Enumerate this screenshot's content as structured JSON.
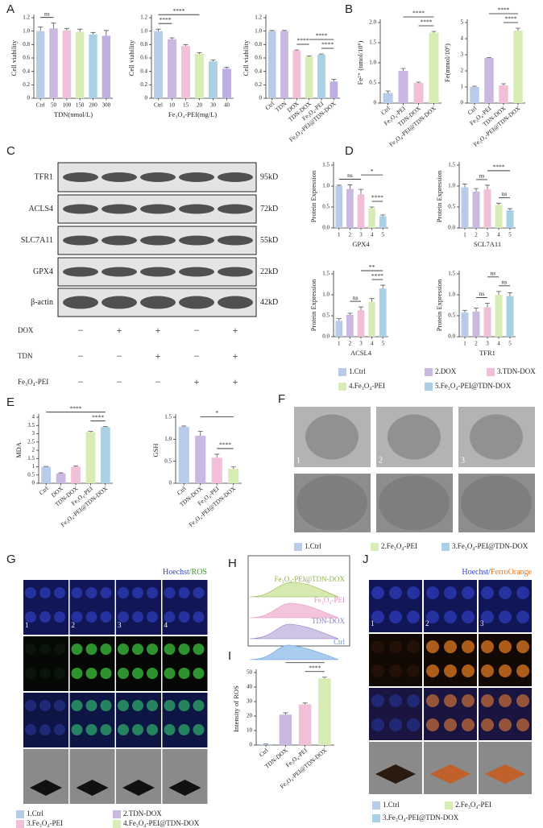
{
  "panel_labels": [
    "A",
    "B",
    "C",
    "D",
    "E",
    "F",
    "G",
    "H",
    "I",
    "J"
  ],
  "chart_data": [
    {
      "type": "bar",
      "ylabel": "Cell viability",
      "xlabel": "TDN(nmol/L)",
      "categories": [
        "Ctrl",
        "50",
        "100",
        "150",
        "200",
        "300"
      ],
      "values": [
        1.0,
        1.04,
        1.01,
        0.99,
        0.95,
        0.93
      ],
      "errors": [
        0.06,
        0.08,
        0.03,
        0.04,
        0.03,
        0.08
      ],
      "colors": [
        "#b8cbe8",
        "#c9b8e0",
        "#f2bfd8",
        "#d8ecb6",
        "#a9d0e4",
        "#bfaee0"
      ],
      "ylim": [
        0,
        1.2
      ],
      "yticks": [
        0,
        0.2,
        0.4,
        0.6,
        0.8,
        {
          "value": 1,
          "label": "1.0"
        },
        1.2
      ],
      "annotations": [
        "ns"
      ]
    },
    {
      "type": "bar",
      "ylabel": "Cell viability",
      "xlabel": "Fe₃O₄-PEI(mg/L)",
      "categories": [
        "Ctrl",
        "10",
        "15",
        "20",
        "30",
        "40"
      ],
      "values": [
        1.0,
        0.88,
        0.78,
        0.66,
        0.55,
        0.44
      ],
      "errors": [
        0.03,
        0.02,
        0.02,
        0.02,
        0.02,
        0.02
      ],
      "colors": [
        "#b8cbe8",
        "#c9b8e0",
        "#f2bfd8",
        "#d8ecb6",
        "#a9d0e4",
        "#bfaee0"
      ],
      "ylim": [
        0,
        1.2
      ],
      "yticks": [
        0,
        0.2,
        0.4,
        0.6,
        0.8,
        {
          "value": 1,
          "label": "1.0"
        },
        1.2
      ],
      "annotations": [
        "****",
        "****"
      ]
    },
    {
      "type": "bar",
      "ylabel": "Cell viability",
      "categories": [
        "Ctrl",
        "TDN",
        "DOX",
        "TDN-DOX",
        "Fe₃O₄-PEI",
        "Fe₃O₄-PEI@TDN-DOX"
      ],
      "values": [
        1.0,
        1.0,
        0.71,
        0.62,
        0.65,
        0.25
      ],
      "errors": [
        0.01,
        0.01,
        0.01,
        0.01,
        0.01,
        0.03
      ],
      "colors": [
        "#b8cbe8",
        "#c9b8e0",
        "#f2bfd8",
        "#d8ecb6",
        "#a9d0e4",
        "#bfaee0"
      ],
      "ylim": [
        0,
        1.2
      ],
      "yticks": [
        0,
        0.2,
        0.4,
        0.6,
        0.8,
        {
          "value": 1,
          "label": "1.0"
        },
        1.2
      ],
      "annotations": [
        "****",
        "****",
        "****"
      ]
    },
    {
      "type": "bar",
      "ylabel": "Fe²⁺ (nmol/10⁶)",
      "categories": [
        "Ctrl",
        "Fe₃O₄-PEI",
        "TDN-DOX",
        "Fe₃O₄-PEI@TDN-DOX"
      ],
      "values": [
        0.25,
        0.8,
        0.5,
        1.75
      ],
      "errors": [
        0.05,
        0.06,
        0.02,
        0.03
      ],
      "colors": [
        "#b8cbe8",
        "#c9b8e0",
        "#f2bfd8",
        "#d8ecb6"
      ],
      "ylim": [
        0,
        2
      ],
      "yticks": [
        0,
        0.5,
        {
          "value": 1,
          "label": "1.0"
        },
        1.5,
        {
          "value": 2,
          "label": "2.0"
        }
      ],
      "annotations": [
        "****",
        "****"
      ]
    },
    {
      "type": "bar",
      "ylabel": "Fe(mmol/10⁶)",
      "categories": [
        "Ctrl",
        "Fe₃O₄-PEI",
        "TDN-DOX",
        "Fe₃O₄-PEI@TDN-DOX"
      ],
      "values": [
        1.0,
        2.8,
        1.1,
        4.5
      ],
      "errors": [
        0.05,
        0.03,
        0.1,
        0.15
      ],
      "colors": [
        "#b8cbe8",
        "#c9b8e0",
        "#f2bfd8",
        "#d8ecb6"
      ],
      "ylim": [
        0,
        5
      ],
      "yticks": [
        0,
        1,
        2,
        3,
        4,
        5
      ],
      "annotations": [
        "****",
        "****"
      ]
    },
    {
      "type": "bar",
      "ylabel": "Protein Expression",
      "xlabel": "GPX4",
      "categories": [
        "1",
        "2",
        "3",
        "4",
        "5"
      ],
      "values": [
        1.0,
        0.93,
        0.8,
        0.47,
        0.28
      ],
      "errors": [
        0.02,
        0.1,
        0.12,
        0.03,
        0.03
      ],
      "colors": [
        "#b8cbe8",
        "#c9b8e0",
        "#f2bfd8",
        "#d8ecb6",
        "#a9d0e4"
      ],
      "ylim": [
        0,
        1.5
      ],
      "yticks": [
        {
          "value": 0,
          "label": "0.0"
        },
        0.5,
        {
          "value": 1,
          "label": "1.0"
        },
        1.5
      ],
      "annotations": [
        "ns",
        "****",
        "*"
      ]
    },
    {
      "type": "bar",
      "ylabel": "Protein Expression",
      "xlabel": "SCL7A11",
      "categories": [
        "1",
        "2",
        "3",
        "4",
        "5"
      ],
      "values": [
        0.97,
        0.87,
        0.92,
        0.55,
        0.42
      ],
      "errors": [
        0.08,
        0.07,
        0.1,
        0.04,
        0.04
      ],
      "colors": [
        "#b8cbe8",
        "#c9b8e0",
        "#f2bfd8",
        "#d8ecb6",
        "#a9d0e4"
      ],
      "ylim": [
        0,
        1.5
      ],
      "yticks": [
        {
          "value": 0,
          "label": "0.0"
        },
        0.5,
        {
          "value": 1,
          "label": "1.0"
        },
        1.5
      ],
      "annotations": [
        "ns",
        "ns",
        "****"
      ]
    },
    {
      "type": "bar",
      "ylabel": "Protein Expression",
      "xlabel": "ACSL4",
      "categories": [
        "1",
        "2",
        "3",
        "4",
        "5"
      ],
      "values": [
        0.38,
        0.52,
        0.63,
        0.83,
        1.15
      ],
      "errors": [
        0.05,
        0.04,
        0.08,
        0.08,
        0.08
      ],
      "colors": [
        "#b8cbe8",
        "#c9b8e0",
        "#f2bfd8",
        "#d8ecb6",
        "#a9d0e4"
      ],
      "ylim": [
        0,
        1.5
      ],
      "yticks": [
        {
          "value": 0,
          "label": "0.0"
        },
        0.5,
        {
          "value": 1,
          "label": "1.0"
        },
        1.5
      ],
      "annotations": [
        "ns",
        "****",
        "**"
      ]
    },
    {
      "type": "bar",
      "ylabel": "Protein Expression",
      "xlabel": "TFR1",
      "categories": [
        "1",
        "2",
        "3",
        "4",
        "5"
      ],
      "values": [
        0.58,
        0.6,
        0.7,
        1.0,
        0.97
      ],
      "errors": [
        0.05,
        0.08,
        0.1,
        0.08,
        0.08
      ],
      "colors": [
        "#b8cbe8",
        "#c9b8e0",
        "#f2bfd8",
        "#d8ecb6",
        "#a9d0e4"
      ],
      "ylim": [
        0,
        1.5
      ],
      "yticks": [
        {
          "value": 0,
          "label": "0.0"
        },
        0.5,
        {
          "value": 1,
          "label": "1.0"
        },
        1.5
      ],
      "annotations": [
        "ns",
        "ns",
        "ns"
      ]
    },
    {
      "type": "bar",
      "ylabel": "MDA",
      "categories": [
        "Ctrl",
        "DOX",
        "TDN-DOX",
        "Fe₃O₄-PEI",
        "Fe₃O₄-PEI@TDN-DOX"
      ],
      "values": [
        1.0,
        0.6,
        1.0,
        3.1,
        3.4
      ],
      "errors": [
        0.02,
        0.03,
        0.04,
        0.04,
        0.03
      ],
      "colors": [
        "#b8cbe8",
        "#c9b8e0",
        "#f2bfd8",
        "#d8ecb6",
        "#a9d0e4"
      ],
      "ylim": [
        0,
        4
      ],
      "yticks": [
        0,
        0.5,
        1,
        1.5,
        2,
        2.5,
        3,
        3.5,
        4
      ],
      "annotations": [
        "****",
        "****"
      ]
    },
    {
      "type": "bar",
      "ylabel": "GSH",
      "categories": [
        "Ctrl",
        "TDN-DOX",
        "Fe₃O₄-PEI",
        "Fe₃O₄-PEI@TDN-DOX"
      ],
      "values": [
        1.28,
        1.08,
        0.58,
        0.33
      ],
      "errors": [
        0.02,
        0.1,
        0.08,
        0.04
      ],
      "colors": [
        "#b8cbe8",
        "#c9b8e0",
        "#f2bfd8",
        "#d8ecb6"
      ],
      "ylim": [
        0,
        1.5
      ],
      "yticks": [
        0,
        0.5,
        {
          "value": 1,
          "label": "1.0"
        },
        1.5
      ],
      "annotations": [
        "****",
        "*"
      ]
    },
    {
      "type": "bar",
      "ylabel": "Intensity of ROS",
      "categories": [
        "Ctrl",
        "TDN-DOX",
        "Fe₃O₄-PEI",
        "Fe₃O₄-PEI@TDN-DOX"
      ],
      "values": [
        0.5,
        21,
        28,
        46
      ],
      "errors": [
        0.2,
        1.2,
        1.0,
        0.8
      ],
      "colors": [
        "#b8cbe8",
        "#c9b8e0",
        "#f2bfd8",
        "#d8ecb6"
      ],
      "ylim": [
        0,
        50
      ],
      "yticks": [
        0,
        10,
        20,
        30,
        40,
        50
      ],
      "annotations": [
        "****",
        "****"
      ]
    }
  ],
  "blot": {
    "proteins": [
      "TFR1",
      "ACLS4",
      "SLC7A11",
      "GPX4",
      "β-actin"
    ],
    "sizes": [
      "95kD",
      "72kD",
      "55kD",
      "22kD",
      "42kD"
    ],
    "treatments": [
      {
        "label": "DOX",
        "signs": [
          "−",
          "+",
          "+",
          "−",
          "+"
        ]
      },
      {
        "label": "TDN",
        "signs": [
          "−",
          "−",
          "+",
          "−",
          "+"
        ]
      },
      {
        "label": "Fe₃O₄-PEI",
        "signs": [
          "−",
          "−",
          "−",
          "+",
          "+"
        ]
      }
    ]
  },
  "legend_d": [
    {
      "label": "1.Ctrl",
      "color": "#b8cbe8"
    },
    {
      "label": "2.DOX",
      "color": "#c9b8e0"
    },
    {
      "label": "3.TDN-DOX",
      "color": "#f2bfd8"
    },
    {
      "label": "4.Fe₃O₄-PEI",
      "color": "#d8ecb6"
    },
    {
      "label": "5.Fe₃O₄-PEI@TDN-DOX",
      "color": "#a9d0e4"
    }
  ],
  "tem": {
    "labels": [
      "1",
      "2",
      "3"
    ],
    "legend": [
      {
        "label": "1.Ctrl",
        "color": "#b8cbe8"
      },
      {
        "label": "2.Fe₃O₄-PEI",
        "color": "#d8ecb6"
      },
      {
        "label": "3.Fe₃O₄-PEI@TDN-DOX",
        "color": "#a9d0e4"
      }
    ]
  },
  "ros": {
    "header": [
      {
        "text": "Hoechst",
        "color": "#3346c8"
      },
      {
        "text": "/ROS",
        "color": "#3a9a2a"
      }
    ],
    "labels": [
      "1",
      "2",
      "3",
      "4"
    ],
    "legend": [
      {
        "label": "1.Ctrl",
        "color": "#b8cbe8"
      },
      {
        "label": "2.TDN-DOX",
        "color": "#c9b8e0"
      },
      {
        "label": "3.Fe₃O₄-PEI",
        "color": "#f2bfd8"
      },
      {
        "label": "4.Fe₃O₄-PEI@TDN-DOX",
        "color": "#d8ecb6"
      }
    ]
  },
  "flow": {
    "labels": [
      {
        "text": "Fe₃O₄-PEI@TDN-DOX",
        "color": "#8fb04a"
      },
      {
        "text": "Fe₃O₄-PEI",
        "color": "#e58fbf"
      },
      {
        "text": "TDN-DOX",
        "color": "#8f7ac0"
      },
      {
        "text": "Ctrl",
        "color": "#5a9ad6"
      }
    ]
  },
  "ferro": {
    "header": [
      {
        "text": "Hoechst/",
        "color": "#3346c8"
      },
      {
        "text": "FerroOrange",
        "color": "#e8771e"
      }
    ],
    "labels": [
      "1",
      "2",
      "3"
    ],
    "legend": [
      {
        "label": "1.Ctrl",
        "color": "#b8cbe8"
      },
      {
        "label": "2.Fe₃O₄-PEI",
        "color": "#d8ecb6"
      },
      {
        "label": "3.Fe₃O₄-PEI@TDN-DOX",
        "color": "#a9d0e4"
      }
    ]
  }
}
